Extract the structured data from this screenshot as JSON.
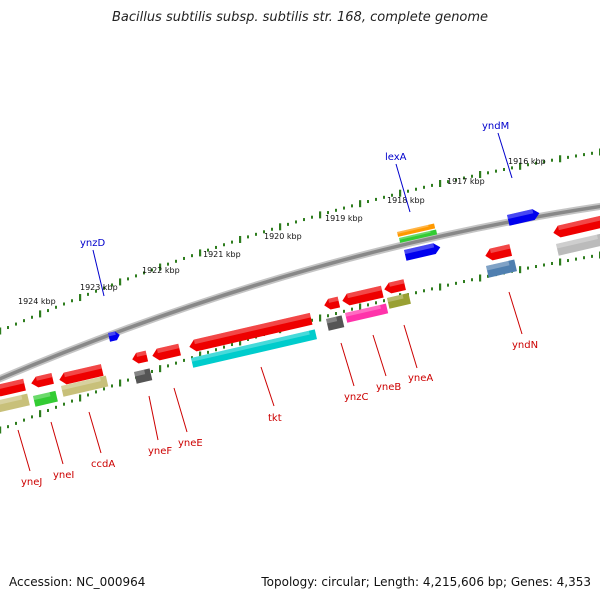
{
  "title": "Bacillus subtilis subsp. subtilis str. 168, complete genome",
  "footer": {
    "accession": "Accession: NC_000964",
    "topology": "Topology: circular; Length: 4,215,606 bp; Genes: 4,353"
  },
  "colors": {
    "backbone": "#888888",
    "tick": "#2e7d1e",
    "label_forward": "#0000cc",
    "label_reverse": "#cc0000"
  },
  "kbp_marks": [
    {
      "label": "1916 kbp"
    },
    {
      "label": "1917 kbp"
    },
    {
      "label": "1918 kbp"
    },
    {
      "label": "1919 kbp"
    },
    {
      "label": "1920 kbp"
    },
    {
      "label": "1921 kbp"
    },
    {
      "label": "1922 kbp"
    },
    {
      "label": "1923 kbp"
    },
    {
      "label": "1924 kbp"
    }
  ],
  "genes": [
    {
      "name": "yndM",
      "strand": "+",
      "color": "#0000ee"
    },
    {
      "name": "lexA",
      "strand": "+",
      "color": "#0000ee"
    },
    {
      "name": "ynzD",
      "strand": "+",
      "color": "#0000ee"
    },
    {
      "name": "yndN",
      "strand": "-",
      "color": "#ee0000"
    },
    {
      "name": "yneA",
      "strand": "-",
      "color": "#ee0000"
    },
    {
      "name": "yneB",
      "strand": "-",
      "color": "#ee0000"
    },
    {
      "name": "ynzC",
      "strand": "-",
      "color": "#ee0000"
    },
    {
      "name": "tkt",
      "strand": "-",
      "color": "#ee0000"
    },
    {
      "name": "yneE",
      "strand": "-",
      "color": "#ee0000"
    },
    {
      "name": "yneF",
      "strand": "-",
      "color": "#ee0000"
    },
    {
      "name": "ccdA",
      "strand": "-",
      "color": "#ee0000"
    },
    {
      "name": "yneI",
      "strand": "-",
      "color": "#ee0000"
    },
    {
      "name": "yneJ",
      "strand": "-",
      "color": "#ee0000"
    }
  ],
  "features": [
    {
      "type": "orange-feature",
      "color": "#ff9900"
    },
    {
      "type": "green-feature",
      "color": "#33cc33"
    },
    {
      "type": "cyan-feature",
      "color": "#00cccc"
    },
    {
      "type": "magenta-feature",
      "color": "#ff33aa"
    },
    {
      "type": "olive-feature",
      "color": "#99a033"
    },
    {
      "type": "khaki-feature",
      "color": "#c8c07a"
    },
    {
      "type": "gray-feature",
      "color": "#555555"
    },
    {
      "type": "steel-feature",
      "color": "#4f7fb0"
    },
    {
      "type": "silver-feature",
      "color": "#bbbbbb"
    }
  ]
}
